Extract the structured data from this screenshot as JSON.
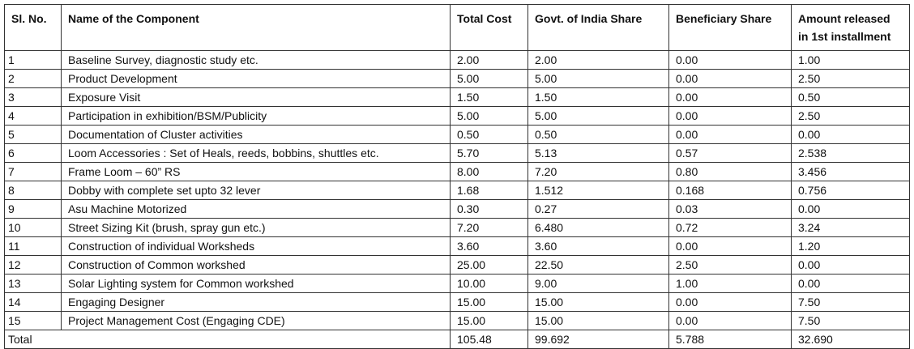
{
  "table": {
    "header": [
      "Sl. No.",
      "Name of the Component",
      "Total Cost",
      "Govt. of India Share",
      "Beneficiary Share",
      "Amount released in 1st installment"
    ],
    "rows": [
      [
        "1",
        "Baseline Survey, diagnostic study etc.",
        "2.00",
        "2.00",
        "0.00",
        "1.00"
      ],
      [
        "2",
        "Product Development",
        "5.00",
        "5.00",
        "0.00",
        "2.50"
      ],
      [
        "3",
        "Exposure Visit",
        "1.50",
        "1.50",
        "0.00",
        "0.50"
      ],
      [
        "4",
        "Participation in exhibition/BSM/Publicity",
        "5.00",
        "5.00",
        "0.00",
        "2.50"
      ],
      [
        "5",
        "Documentation of Cluster activities",
        "0.50",
        "0.50",
        "0.00",
        "0.00"
      ],
      [
        "6",
        "Loom Accessories : Set of Heals, reeds, bobbins, shuttles etc.",
        "5.70",
        "5.13",
        "0.57",
        "2.538"
      ],
      [
        "7",
        "Frame Loom – 60” RS",
        "8.00",
        "7.20",
        "0.80",
        "3.456"
      ],
      [
        "8",
        "Dobby with complete set upto 32 lever",
        "1.68",
        "1.512",
        "0.168",
        "0.756"
      ],
      [
        "9",
        "Asu Machine Motorized",
        "0.30",
        "0.27",
        "0.03",
        "0.00"
      ],
      [
        "10",
        "Street Sizing Kit (brush, spray gun etc.)",
        "7.20",
        "6.480",
        "0.72",
        "3.24"
      ],
      [
        "11",
        "Construction of individual Worksheds",
        "3.60",
        "3.60",
        "0.00",
        "1.20"
      ],
      [
        "12",
        "Construction of Common workshed",
        "25.00",
        "22.50",
        "2.50",
        "0.00"
      ],
      [
        "13",
        "Solar Lighting system for Common workshed",
        "10.00",
        "9.00",
        "1.00",
        "0.00"
      ],
      [
        "14",
        "Engaging Designer",
        "15.00",
        "15.00",
        "0.00",
        "7.50"
      ],
      [
        "15",
        "Project Management Cost (Engaging CDE)",
        "15.00",
        "15.00",
        "0.00",
        "7.50"
      ]
    ],
    "total": {
      "label": "Total",
      "values": [
        "105.48",
        "99.692",
        "5.788",
        "32.690"
      ]
    }
  }
}
